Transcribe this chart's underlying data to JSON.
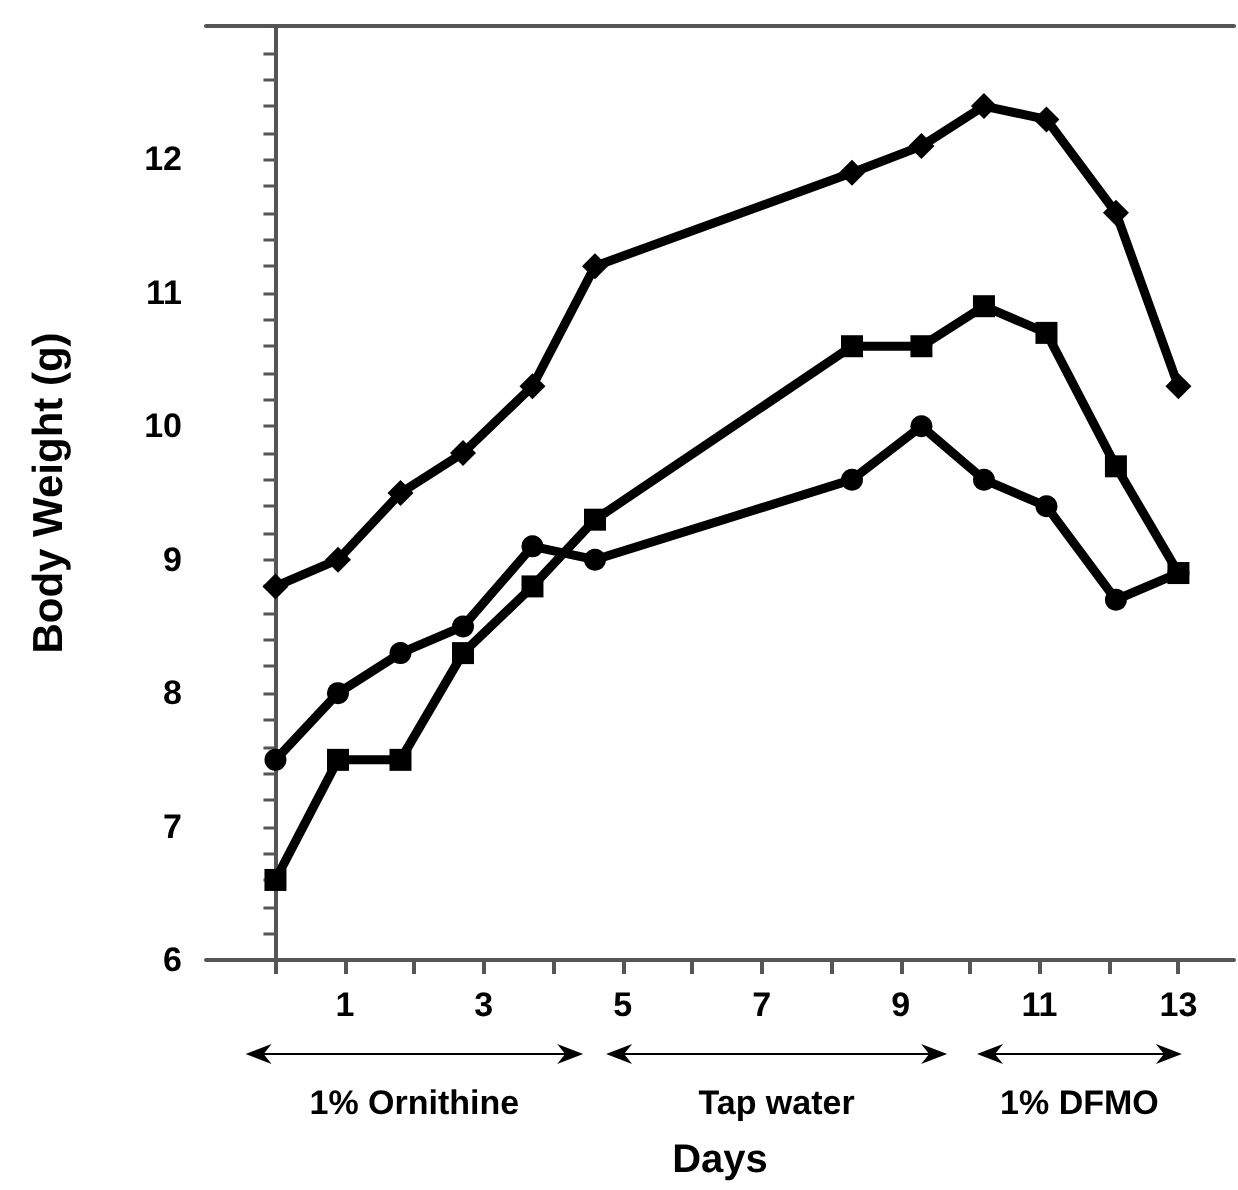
{
  "chart_data": {
    "type": "line",
    "xlabel": "Days",
    "ylabel": "Body Weight (g)",
    "line_style": "solid",
    "xlim": [
      -1,
      13.8
    ],
    "ylim": [
      6,
      13
    ],
    "xticks": [
      {
        "value": 0,
        "label": null
      },
      1,
      {
        "value": 2,
        "label": null
      },
      3,
      {
        "value": 4,
        "label": null
      },
      5,
      {
        "value": 6,
        "label": null
      },
      7,
      {
        "value": 8,
        "label": null
      },
      9,
      {
        "value": 10,
        "label": null
      },
      11,
      {
        "value": 12,
        "label": null
      },
      13
    ],
    "yticks": [
      6,
      {
        "value": 6.2,
        "label": null
      },
      {
        "value": 6.4,
        "label": null
      },
      {
        "value": 6.6,
        "label": null
      },
      {
        "value": 6.8,
        "label": null
      },
      7,
      {
        "value": 7.2,
        "label": null
      },
      {
        "value": 7.4,
        "label": null
      },
      {
        "value": 7.6,
        "label": null
      },
      {
        "value": 7.8,
        "label": null
      },
      8,
      {
        "value": 8.2,
        "label": null
      },
      {
        "value": 8.4,
        "label": null
      },
      {
        "value": 8.6,
        "label": null
      },
      {
        "value": 8.8,
        "label": null
      },
      9,
      {
        "value": 9.2,
        "label": null
      },
      {
        "value": 9.4,
        "label": null
      },
      {
        "value": 9.6,
        "label": null
      },
      {
        "value": 9.8,
        "label": null
      },
      10,
      {
        "value": 10.2,
        "label": null
      },
      {
        "value": 10.4,
        "label": null
      },
      {
        "value": 10.6,
        "label": null
      },
      {
        "value": 10.8,
        "label": null
      },
      11,
      {
        "value": 11.2,
        "label": null
      },
      {
        "value": 11.4,
        "label": null
      },
      {
        "value": 11.6,
        "label": null
      },
      {
        "value": 11.8,
        "label": null
      },
      12,
      {
        "value": 12.2,
        "label": null
      },
      {
        "value": 12.4,
        "label": null
      },
      {
        "value": 12.6,
        "label": null
      },
      {
        "value": 12.8,
        "label": null
      },
      {
        "value": 13,
        "label": null
      }
    ],
    "series": [
      {
        "color": "#000000",
        "marker": "diamond",
        "x": [
          0,
          0.9,
          1.8,
          2.7,
          3.7,
          4.6,
          8.3,
          9.3,
          10.2,
          11.1,
          12.1,
          13
        ],
        "values": [
          8.8,
          9.0,
          9.5,
          9.8,
          10.3,
          11.2,
          11.9,
          12.1,
          12.4,
          12.3,
          11.6,
          10.3
        ]
      },
      {
        "color": "#000000",
        "marker": "circle",
        "x": [
          0,
          0.9,
          1.8,
          2.7,
          3.7,
          4.6,
          8.3,
          9.3,
          10.2,
          11.1,
          12.1,
          13
        ],
        "values": [
          7.5,
          8.0,
          8.3,
          8.5,
          9.1,
          9.0,
          9.6,
          10.0,
          9.6,
          9.4,
          8.7,
          8.9
        ]
      },
      {
        "color": "#000000",
        "marker": "square",
        "x": [
          0,
          0.9,
          1.8,
          2.7,
          3.7,
          4.6,
          8.3,
          9.3,
          10.2,
          11.1,
          12.1,
          13
        ],
        "values": [
          6.6,
          7.5,
          7.5,
          8.3,
          8.8,
          9.3,
          10.6,
          10.6,
          10.9,
          10.7,
          9.7,
          8.9
        ]
      }
    ],
    "annotations": [
      "1% Ornithine",
      "Tap water",
      "1% DFMO"
    ]
  }
}
